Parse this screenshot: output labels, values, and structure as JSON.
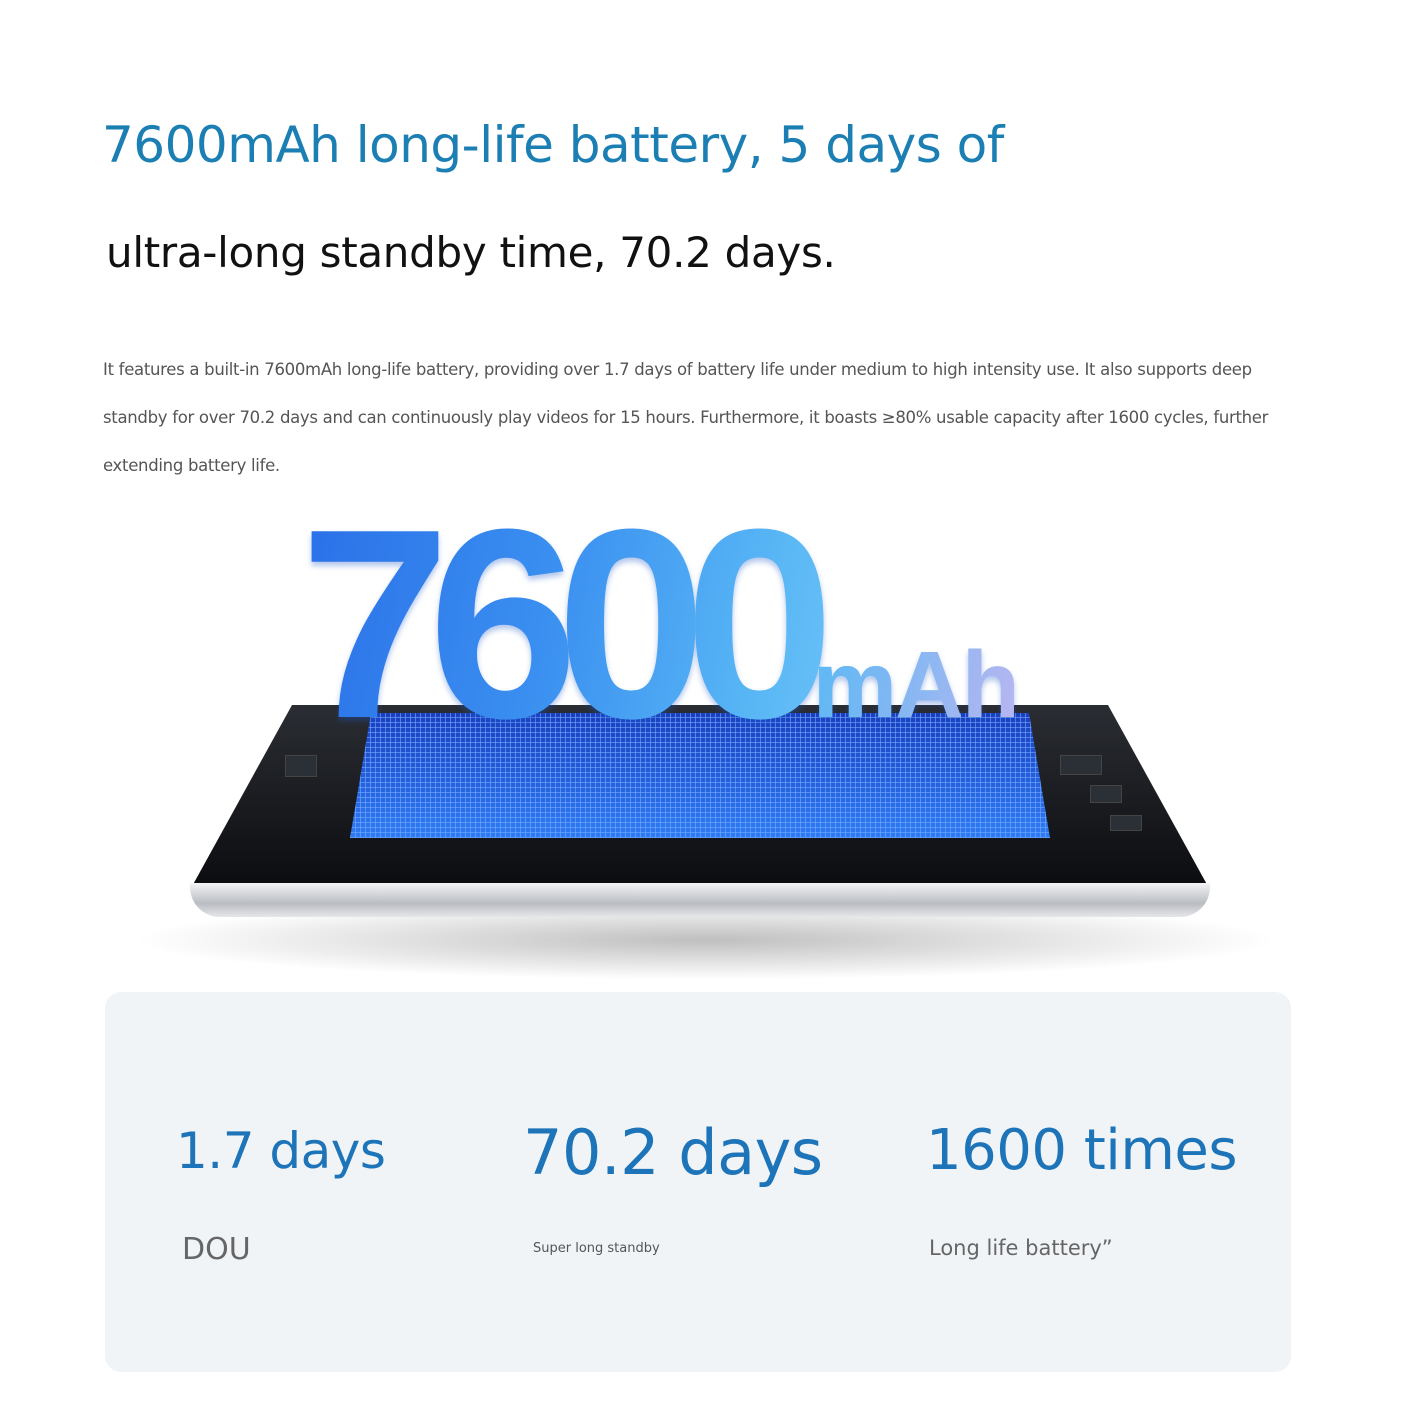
{
  "headline": {
    "line1": "7600mAh long-life battery, 5 days of",
    "line2": "ultra-long standby time, 70.2 days."
  },
  "description": "It features a built-in 7600mAh long-life battery, providing over 1.7 days of battery life under medium to high intensity use. It also supports deep standby for over 70.2 days and can continuously play videos for 15 hours. Furthermore, it boasts ≥80% usable capacity after 1600 cycles, further extending battery life.",
  "hero": {
    "number": "7600",
    "unit": "mAh"
  },
  "stats": [
    {
      "value": "1.7 days",
      "label": "DOU"
    },
    {
      "value": "70.2 days",
      "label": "Super long standby"
    },
    {
      "value": "1600 times",
      "label": "Long life battery”"
    }
  ],
  "colors": {
    "accent": "#1b7fb3",
    "stat": "#1d74b8",
    "card_bg": "#f0f4f7"
  }
}
